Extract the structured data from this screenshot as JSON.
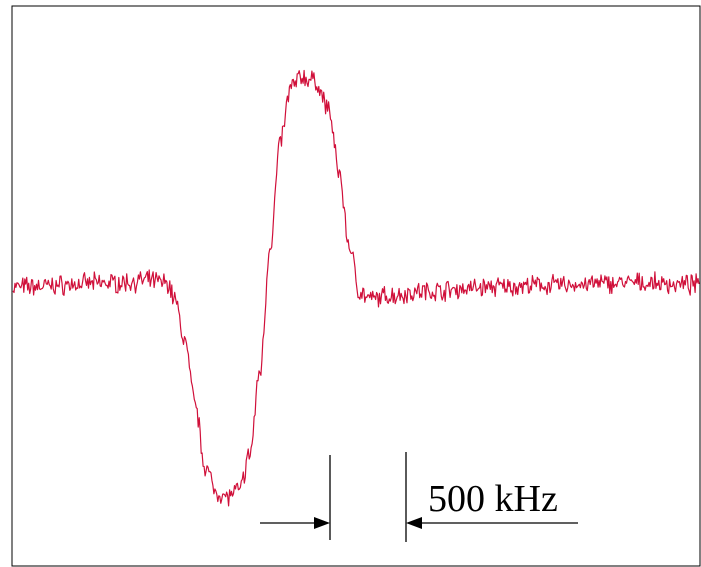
{
  "chart_data": {
    "type": "line",
    "title": "",
    "xlabel": "",
    "ylabel": "",
    "grid": false,
    "legend": "none",
    "line_color": "#d0103a",
    "series": [
      {
        "values": [
          [
            0,
            0.0
          ],
          [
            0.15,
            0.02
          ],
          [
            0.2,
            0.03
          ],
          [
            0.225,
            0.02
          ],
          [
            0.235,
            -0.05
          ],
          [
            0.25,
            -0.25
          ],
          [
            0.265,
            -0.55
          ],
          [
            0.28,
            -0.85
          ],
          [
            0.295,
            -0.97
          ],
          [
            0.31,
            -1.0
          ],
          [
            0.33,
            -0.97
          ],
          [
            0.345,
            -0.8
          ],
          [
            0.36,
            -0.4
          ],
          [
            0.375,
            0.2
          ],
          [
            0.39,
            0.7
          ],
          [
            0.405,
            0.95
          ],
          [
            0.42,
            1.0
          ],
          [
            0.44,
            0.98
          ],
          [
            0.46,
            0.85
          ],
          [
            0.475,
            0.55
          ],
          [
            0.49,
            0.2
          ],
          [
            0.505,
            -0.02
          ],
          [
            0.52,
            -0.06
          ],
          [
            0.55,
            -0.04
          ],
          [
            0.6,
            -0.02
          ],
          [
            0.7,
            0.0
          ],
          [
            0.8,
            0.01
          ],
          [
            0.9,
            0.02
          ],
          [
            1.0,
            0.01
          ]
        ]
      }
    ],
    "annotation": {
      "label": "500 kHz"
    }
  }
}
